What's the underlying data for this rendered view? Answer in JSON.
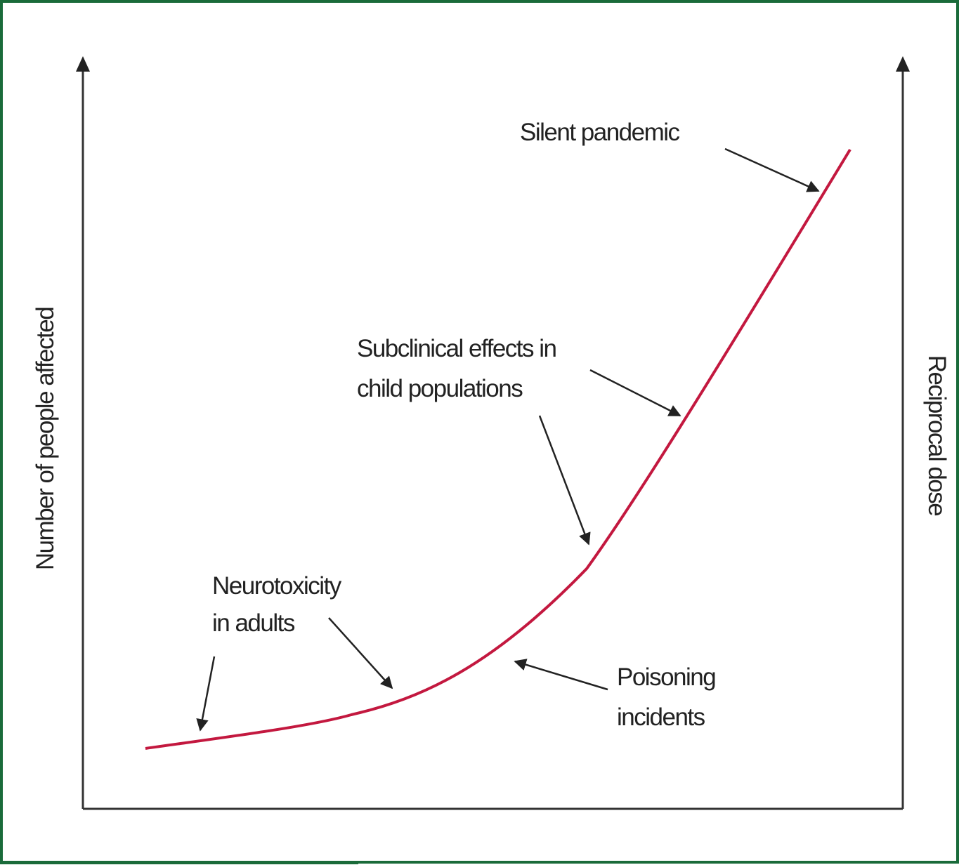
{
  "axes": {
    "y_left": "Number of people affected",
    "y_right": "Reciprocal dose"
  },
  "annotations": [
    {
      "lines": [
        "Silent pandemic"
      ]
    },
    {
      "lines": [
        "Subclinical effects in",
        "child populations"
      ]
    },
    {
      "lines": [
        "Neurotoxicity",
        "in adults"
      ]
    },
    {
      "lines": [
        "Poisoning",
        "incidents"
      ]
    }
  ]
}
